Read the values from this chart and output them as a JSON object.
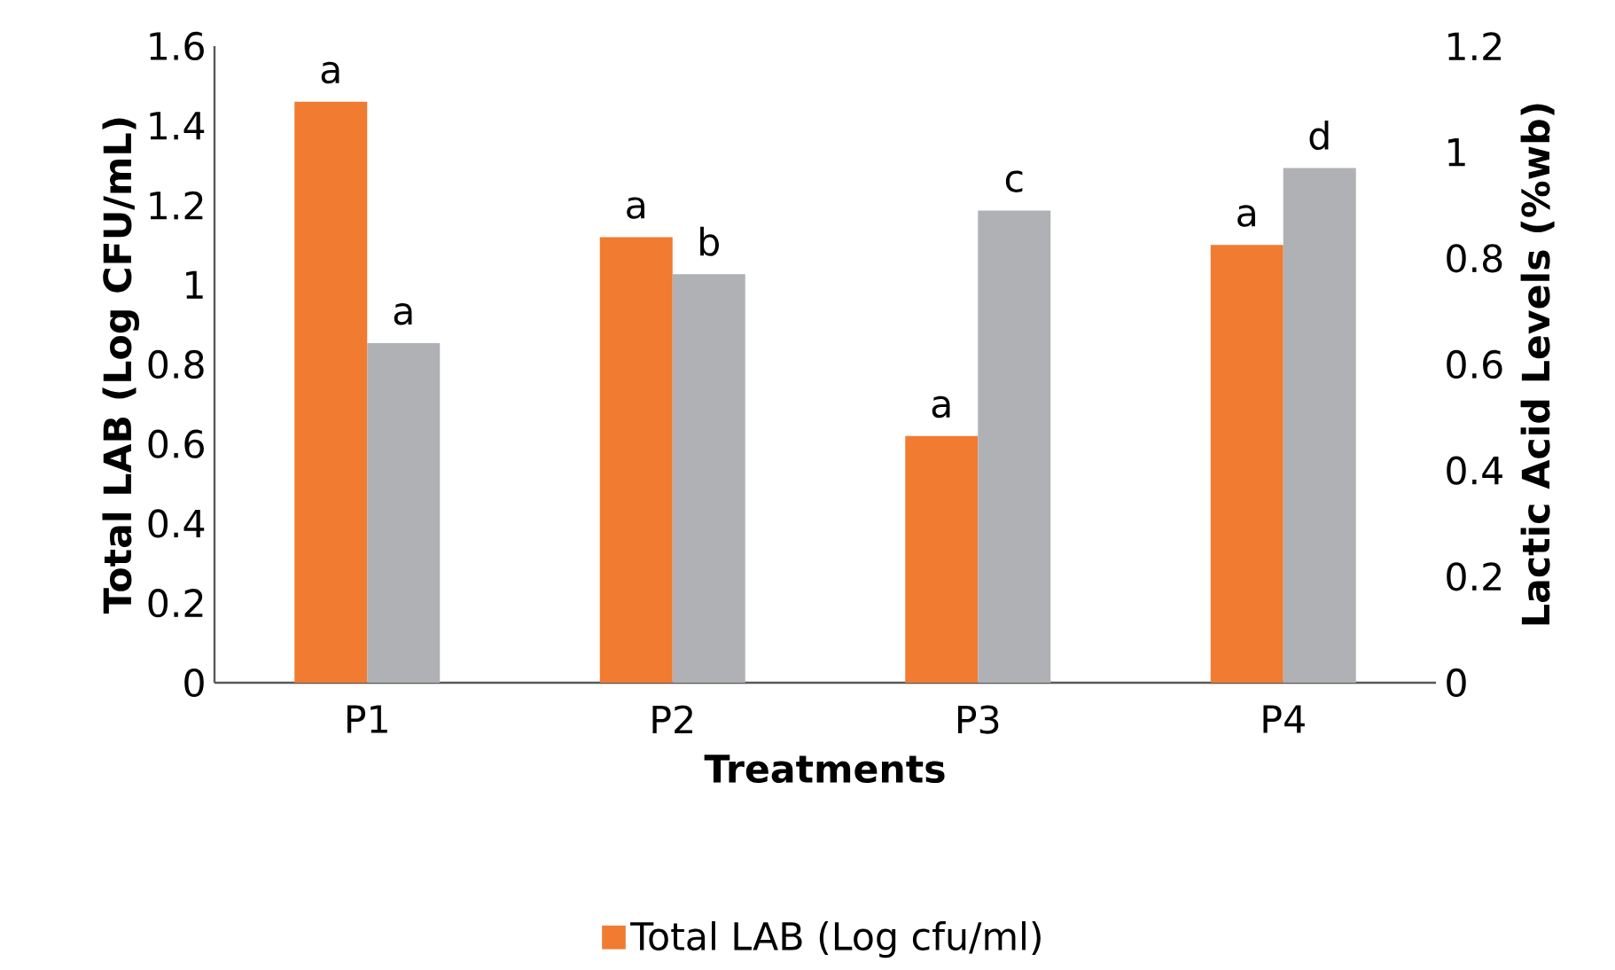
{
  "chart_data": {
    "type": "bar",
    "categories": [
      "P1",
      "P2",
      "P3",
      "P4"
    ],
    "xlabel": "Treatments",
    "ylabel": "Total LAB (Log CFU/mL)",
    "y2label": "Lactic Acid Levels (%wb)",
    "ylim": [
      0,
      1.6
    ],
    "yticks": [
      0,
      0.2,
      0.4,
      0.6,
      0.8,
      1,
      1.2,
      1.4,
      1.6
    ],
    "y2lim": [
      0,
      1.2
    ],
    "y2ticks": [
      0,
      0.2,
      0.4,
      0.6,
      0.8,
      1,
      1.2
    ],
    "legend": "bottom",
    "series": [
      {
        "name": "Total LAB (Log cfu/ml)",
        "color": "#f07b31",
        "values": [
          1.46,
          1.12,
          0.62,
          1.1
        ],
        "value_labels": [
          "a",
          "a",
          "a",
          "a"
        ]
      },
      {
        "color": "#b0b1b5",
        "axis": "y2",
        "values": [
          0.64,
          0.77,
          0.89,
          0.97
        ],
        "value_labels": [
          "a",
          "b",
          "c",
          "d"
        ]
      }
    ]
  }
}
